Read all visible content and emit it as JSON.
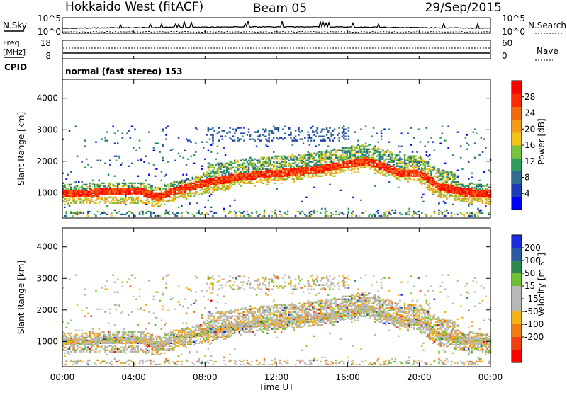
{
  "header": {
    "station": "Hokkaido West (fitACF)",
    "beam": "Beam 05",
    "date": "29/Sep/2015"
  },
  "noise_panel": {
    "left_label": "N.Sky",
    "right_label": "N.Search",
    "left_ticks": [
      "10^5",
      "10^0"
    ],
    "right_ticks": [
      "10^5",
      "10^0"
    ]
  },
  "freq_panel": {
    "left_label_line1": "Freq.",
    "left_label_line2": "[MHz]",
    "right_label": "Nave",
    "left_ticks": [
      "18",
      "8"
    ],
    "right_ticks": [
      "60",
      "0"
    ]
  },
  "cpid": {
    "label": "CPID",
    "text": "normal (fast stereo) 153"
  },
  "colors": {
    "power_scale": [
      "#0000ff",
      "#1c3cb4",
      "#2e6e8c",
      "#2e9e5e",
      "#7cc242",
      "#f2c21b",
      "#f49b1a",
      "#f06a14",
      "#ff2a00",
      "#ff0000"
    ],
    "velocity_scale": [
      "#1a2ee0",
      "#2c5aa0",
      "#2c8a50",
      "#6cc232",
      "#b8b8b8",
      "#b8b8b8",
      "#f2b41b",
      "#f07d14",
      "#f04010",
      "#ff0000"
    ]
  },
  "chart_data": [
    {
      "type": "heatmap",
      "name": "power",
      "ylabel": "Slant Range [km]",
      "xlabel": "",
      "x_ticks": [
        "00:00",
        "04:00",
        "08:00",
        "12:00",
        "16:00",
        "20:00",
        "00:00"
      ],
      "y_ticks": [
        1000,
        2000,
        3000,
        4000
      ],
      "ylim": [
        200,
        4600
      ],
      "xlim_hours": [
        0,
        24
      ],
      "colorbar_label": "Power [dB]",
      "colorbar_ticks": [
        4,
        8,
        12,
        16,
        20,
        24,
        28
      ],
      "colorbar_range": [
        0,
        32
      ],
      "ridge_km": [
        [
          0,
          950
        ],
        [
          2,
          1000
        ],
        [
          4.5,
          1000
        ],
        [
          5.3,
          850
        ],
        [
          6,
          1000
        ],
        [
          8,
          1300
        ],
        [
          10,
          1500
        ],
        [
          12,
          1600
        ],
        [
          14,
          1700
        ],
        [
          16,
          1900
        ],
        [
          17,
          2000
        ],
        [
          18,
          1800
        ],
        [
          19,
          1600
        ],
        [
          20,
          1600
        ],
        [
          21,
          1200
        ],
        [
          22.5,
          1000
        ],
        [
          24,
          950
        ]
      ]
    },
    {
      "type": "heatmap",
      "name": "velocity",
      "ylabel": "Slant Range [km]",
      "xlabel": "Time UT",
      "x_ticks": [
        "00:00",
        "04:00",
        "08:00",
        "12:00",
        "16:00",
        "20:00",
        "00:00"
      ],
      "y_ticks": [
        1000,
        2000,
        3000,
        4000
      ],
      "ylim": [
        200,
        4600
      ],
      "xlim_hours": [
        0,
        24
      ],
      "colorbar_label": "Velocity [m s^-1]",
      "colorbar_ticks": [
        200,
        100,
        50,
        15,
        -15,
        -50,
        -100,
        -200
      ]
    }
  ]
}
